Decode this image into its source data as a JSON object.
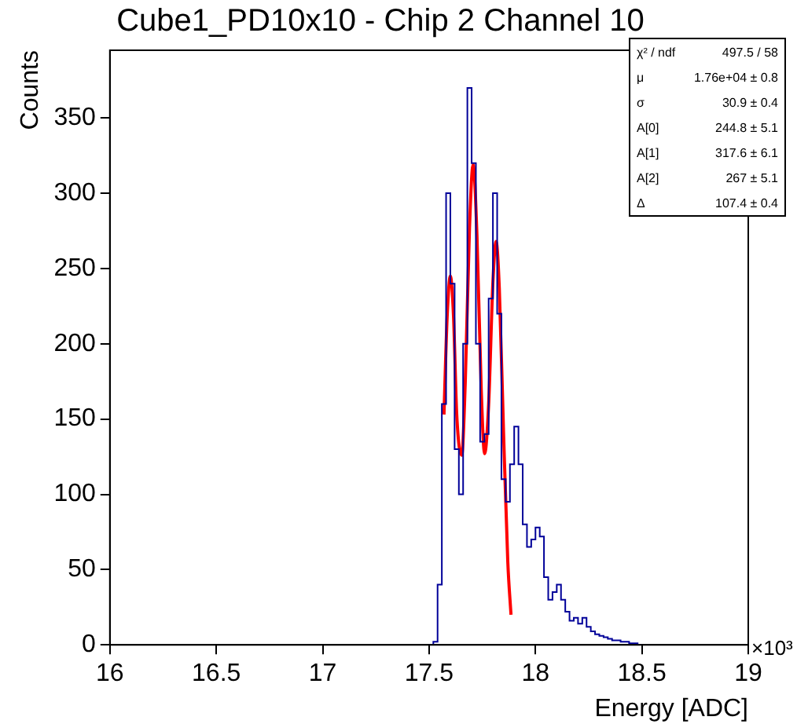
{
  "chart_data": {
    "type": "histogram",
    "title": "Cube1_PD10x10 - Chip 2 Channel 10",
    "xlabel": "Energy [ADC]",
    "ylabel": "Counts",
    "xlim": [
      16,
      19
    ],
    "xticks": [
      16,
      16.5,
      17,
      17.5,
      18,
      18.5,
      19
    ],
    "ylim": [
      0,
      395
    ],
    "yticks": [
      0,
      50,
      100,
      150,
      200,
      250,
      300,
      350
    ],
    "grid": false,
    "legend": false,
    "series": [
      {
        "color": "#000099",
        "bins": [
          17.5,
          17.52,
          17.54,
          17.56,
          17.58,
          17.6,
          17.62,
          17.64,
          17.66,
          17.68,
          17.7,
          17.72,
          17.74,
          17.76,
          17.78,
          17.8,
          17.82,
          17.84,
          17.86,
          17.88,
          17.9,
          17.92,
          17.94,
          17.96,
          17.98,
          18,
          18.02,
          18.04,
          18.06,
          18.08,
          18.1,
          18.12,
          18.14,
          18.16,
          18.18,
          18.2,
          18.22,
          18.24,
          18.26,
          18.28,
          18.3,
          18.32,
          18.34,
          18.36,
          18.38,
          18.4,
          18.42,
          18.44,
          18.46,
          18.48,
          18.5
        ],
        "values": [
          0,
          2,
          40,
          160,
          300,
          240,
          130,
          100,
          200,
          370,
          320,
          200,
          135,
          140,
          230,
          300,
          220,
          110,
          95,
          120,
          145,
          120,
          80,
          65,
          70,
          78,
          72,
          45,
          30,
          35,
          40,
          30,
          22,
          16,
          18,
          14,
          18,
          12,
          9,
          7,
          6,
          5,
          4,
          3,
          3,
          2,
          2,
          1,
          1,
          0
        ]
      },
      {
        "type": "line",
        "color": "#ff0000",
        "x": [
          17.57,
          17.585,
          17.6,
          17.615,
          17.63,
          17.6535,
          17.67,
          17.69,
          17.707,
          17.725,
          17.745,
          17.761,
          17.78,
          17.8,
          17.815,
          17.83,
          17.85,
          17.87,
          17.885
        ],
        "values": [
          153,
          218,
          245,
          218,
          153,
          126,
          174,
          277,
          319,
          272,
          170,
          127,
          160,
          241,
          268,
          237,
          141,
          55,
          20
        ]
      }
    ],
    "annotations": [
      "χ² / ndf",
      "497.5 / 58",
      "μ",
      "1.76e+04 ± 0.8",
      "σ",
      "30.9 ± 0.4",
      "A[0]",
      "244.8 ± 5.1",
      "A[1]",
      "317.6 ± 6.1",
      "A[2]",
      "267 ± 5.1",
      "Δ",
      "107.4 ± 0.4",
      "×10³"
    ]
  }
}
